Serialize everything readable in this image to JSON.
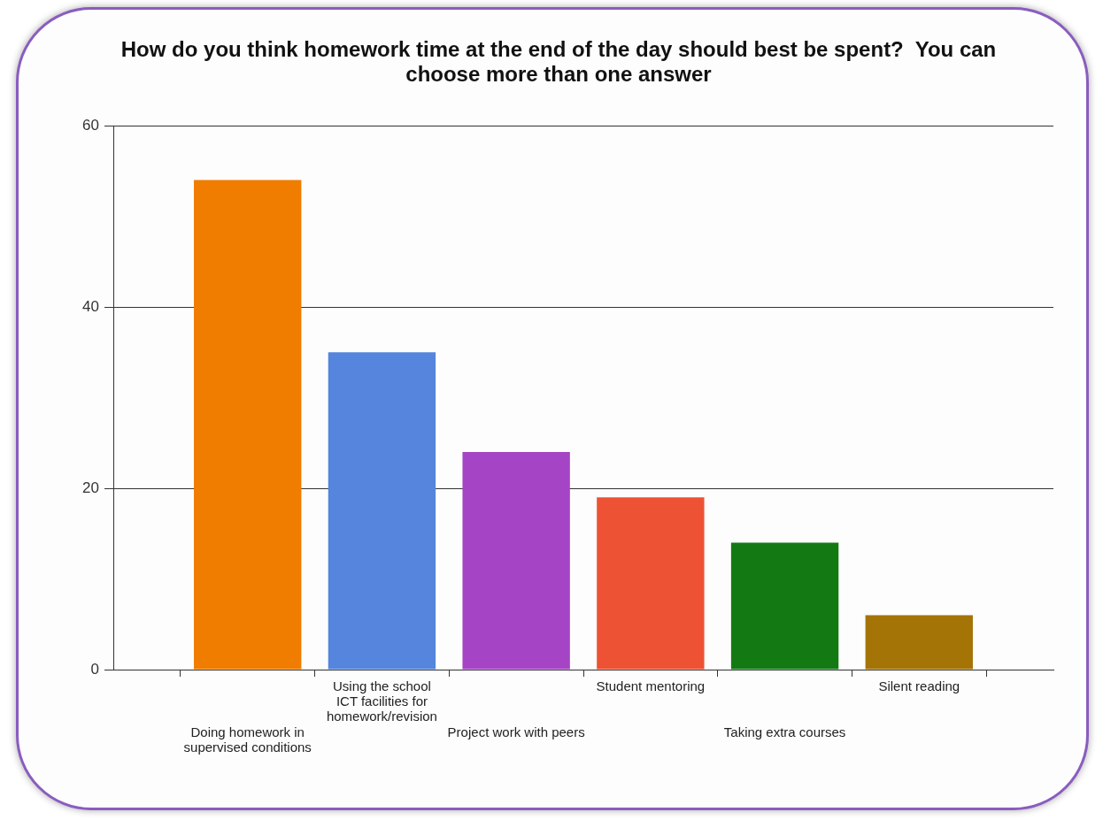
{
  "chart_data": {
    "type": "bar",
    "title": "How do you think homework time at the end of the day should best be spent?  You can choose more than one answer",
    "categories": [
      "Doing homework in supervised conditions",
      "Using the school ICT facilities for homework/revision",
      "Project work with peers",
      "Student mentoring",
      "Taking extra courses",
      "Silent reading"
    ],
    "values": [
      54,
      35,
      24,
      19,
      14,
      6
    ],
    "colors": [
      "#f07c00",
      "#5585dc",
      "#a544c4",
      "#ee5234",
      "#137a13",
      "#a47406"
    ],
    "ylim": [
      0,
      60
    ],
    "yticks": [
      0,
      20,
      40,
      60
    ],
    "grid": "y"
  }
}
